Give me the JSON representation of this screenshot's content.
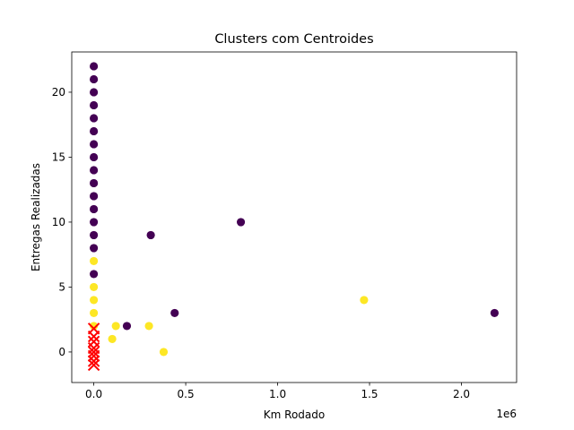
{
  "chart_data": {
    "type": "scatter",
    "title": "Clusters com Centroides",
    "xlabel": "Km Rodado",
    "ylabel": "Entregas Realizadas",
    "x_offset_label": "1e6",
    "x_scale": 1000000,
    "xlim": [
      -0.12,
      2.3
    ],
    "ylim": [
      -2.35,
      23.1
    ],
    "x_ticks": [
      0.0,
      0.5,
      1.0,
      1.5,
      2.0
    ],
    "x_tick_labels": [
      "0.0",
      "0.5",
      "1.0",
      "1.5",
      "2.0"
    ],
    "y_ticks": [
      0,
      5,
      10,
      15,
      20
    ],
    "y_tick_labels": [
      "0",
      "5",
      "10",
      "15",
      "20"
    ],
    "grid": false,
    "legend": "none",
    "colors": {
      "cluster_0": "#440154",
      "cluster_1": "#fde725",
      "centroid": "#ff0000"
    },
    "series": [
      {
        "cluster": "cluster_0",
        "points": [
          {
            "x": 0,
            "y": 22
          },
          {
            "x": 0,
            "y": 21
          },
          {
            "x": 0,
            "y": 20
          },
          {
            "x": 0,
            "y": 19
          },
          {
            "x": 0,
            "y": 18
          },
          {
            "x": 0,
            "y": 17
          },
          {
            "x": 0,
            "y": 16
          },
          {
            "x": 0,
            "y": 15
          },
          {
            "x": 0,
            "y": 14
          },
          {
            "x": 0,
            "y": 13
          },
          {
            "x": 0,
            "y": 12
          },
          {
            "x": 0,
            "y": 11
          },
          {
            "x": 0,
            "y": 10
          },
          {
            "x": 0,
            "y": 9
          },
          {
            "x": 0,
            "y": 8
          },
          {
            "x": 0,
            "y": 6
          },
          {
            "x": 0.31,
            "y": 9
          },
          {
            "x": 0.8,
            "y": 10
          },
          {
            "x": 0.44,
            "y": 3
          },
          {
            "x": 0.18,
            "y": 2
          },
          {
            "x": 2.18,
            "y": 3
          }
        ]
      },
      {
        "cluster": "cluster_1",
        "points": [
          {
            "x": 0,
            "y": 7
          },
          {
            "x": 0,
            "y": 5
          },
          {
            "x": 0,
            "y": 4
          },
          {
            "x": 0,
            "y": 3
          },
          {
            "x": 0,
            "y": 2
          },
          {
            "x": 0.1,
            "y": 1
          },
          {
            "x": 0.12,
            "y": 2
          },
          {
            "x": 0.3,
            "y": 2
          },
          {
            "x": 0.38,
            "y": 0
          },
          {
            "x": 1.47,
            "y": 4
          }
        ]
      },
      {
        "cluster": "centroid",
        "marker": "x",
        "points": [
          {
            "x": 0,
            "y": 1.8
          },
          {
            "x": 0,
            "y": 1.2
          },
          {
            "x": 0,
            "y": 0.8
          },
          {
            "x": 0,
            "y": 0.3
          },
          {
            "x": 0,
            "y": 0.0
          },
          {
            "x": 0,
            "y": -0.3
          },
          {
            "x": 0,
            "y": -0.7
          },
          {
            "x": 0,
            "y": -1.0
          }
        ]
      }
    ]
  }
}
